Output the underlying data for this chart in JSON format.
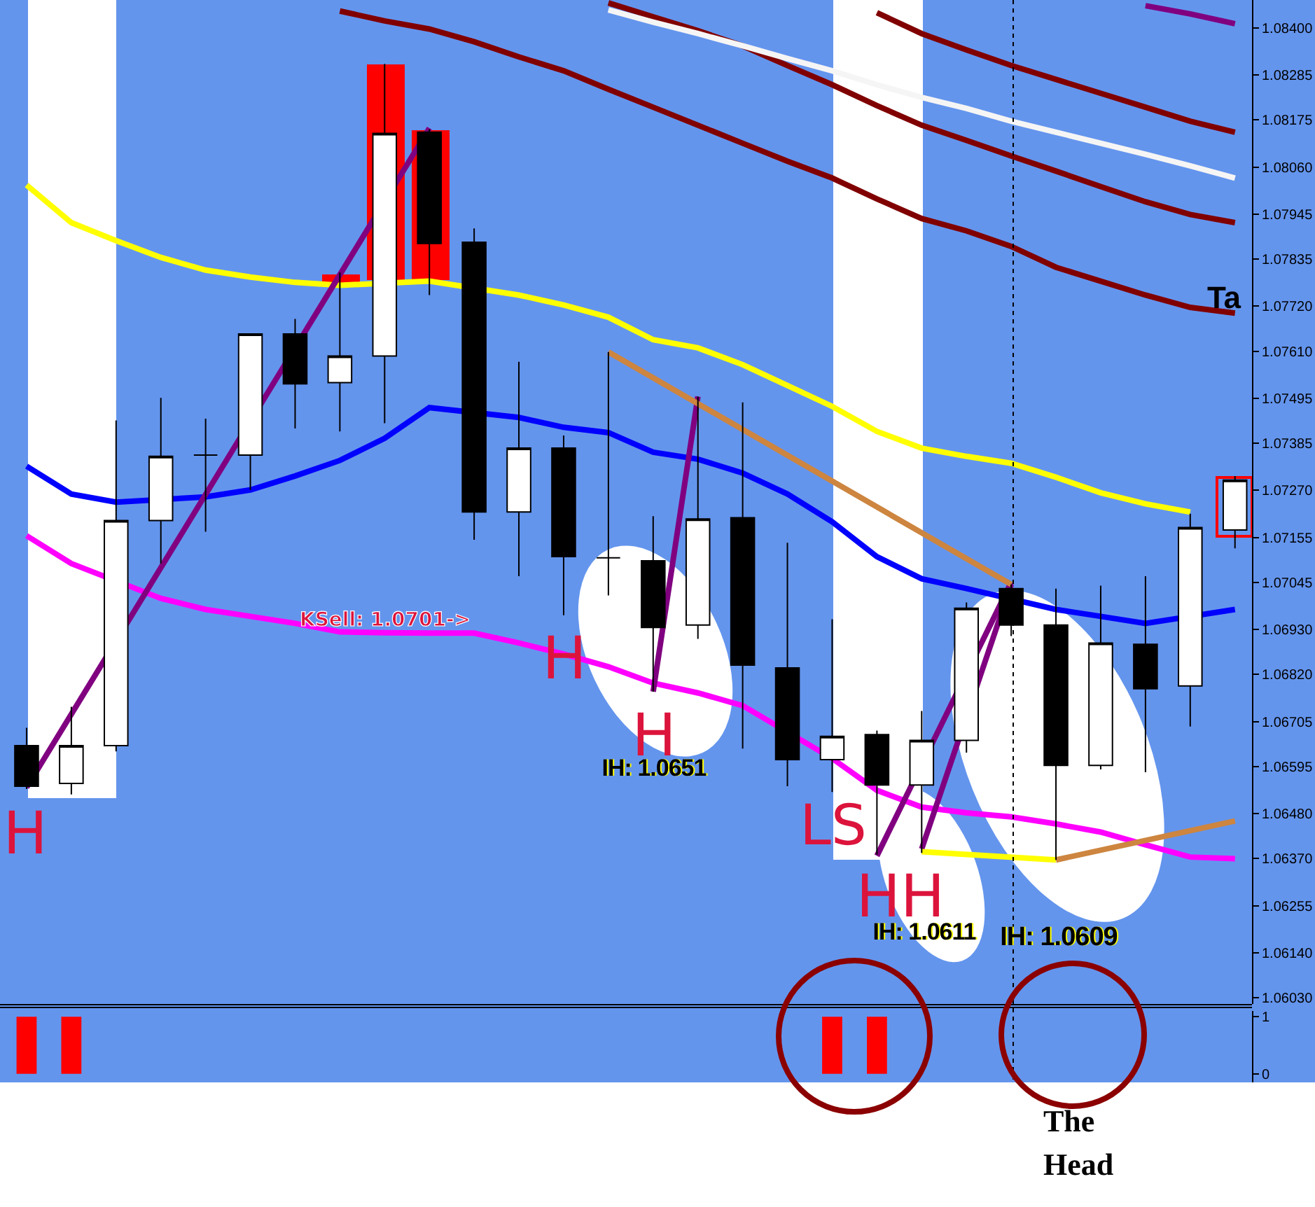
{
  "chart_data": [
    {
      "type": "candlestick",
      "tick_labels": "y",
      "categories": [
        null,
        null,
        null,
        null,
        null,
        null,
        null,
        null,
        null,
        null,
        null,
        null,
        null,
        null,
        null,
        null,
        null,
        null,
        null,
        null,
        null,
        null,
        null,
        null,
        null,
        null,
        null,
        null
      ],
      "ohlc": [
        [
          1.06646,
          1.0669,
          1.0654,
          1.06547
        ],
        [
          1.06554,
          1.06741,
          1.06527,
          1.06646
        ],
        [
          1.06646,
          1.07441,
          1.06632,
          1.07196
        ],
        [
          1.07196,
          1.07496,
          1.07091,
          1.07353
        ],
        [
          1.07356,
          1.07445,
          1.07169,
          1.07356
        ],
        [
          1.07356,
          1.07652,
          1.07271,
          1.07652
        ],
        [
          1.07652,
          1.07689,
          1.07421,
          1.0753
        ],
        [
          1.07533,
          1.07802,
          1.07414,
          1.07598
        ],
        [
          1.07598,
          1.08312,
          1.07434,
          1.08142
        ],
        [
          1.08145,
          1.08152,
          1.07747,
          1.07873
        ],
        [
          1.07876,
          1.0791,
          1.07149,
          1.07217
        ],
        [
          1.07217,
          1.07584,
          1.0706,
          1.07373
        ],
        [
          1.07373,
          1.07404,
          1.06965,
          1.07108
        ],
        [
          1.07105,
          1.07608,
          1.07013,
          1.07105
        ],
        [
          1.07098,
          1.07207,
          1.06778,
          1.06935
        ],
        [
          1.06941,
          1.07499,
          1.06907,
          1.072
        ],
        [
          1.07203,
          1.07485,
          1.06639,
          1.06843
        ],
        [
          1.06836,
          1.07142,
          1.06547,
          1.06612
        ],
        [
          1.06612,
          1.06955,
          1.06533,
          1.06669
        ],
        [
          1.06673,
          1.06683,
          1.0638,
          1.0655
        ],
        [
          1.0655,
          1.06731,
          1.06384,
          1.06659
        ],
        [
          1.06659,
          1.06996,
          1.06629,
          1.06982
        ],
        [
          1.0703,
          1.0704,
          1.06914,
          1.06941
        ],
        [
          1.06941,
          1.0703,
          1.06367,
          1.06598
        ],
        [
          1.06598,
          1.07037,
          1.06588,
          1.06897
        ],
        [
          1.06894,
          1.0706,
          1.06581,
          1.06785
        ],
        [
          1.06792,
          1.07213,
          1.06693,
          1.07179
        ],
        [
          1.07173,
          1.07305,
          1.07128,
          1.07295
        ]
      ],
      "series": [
        {
          "type": "line",
          "color": "#ffff00",
          "values": [
            1.08016,
            1.07924,
            1.0788,
            1.07839,
            1.07808,
            1.07791,
            1.07778,
            1.07771,
            null,
            1.07781,
            null,
            1.07747,
            1.07723,
            1.07693,
            1.07638,
            1.07618,
            1.07577,
            1.07526,
            1.07475,
            1.07414,
            1.07373,
            1.07353,
            1.07336,
            1.07302,
            1.07264,
            1.07237,
            1.07217,
            null
          ]
        },
        {
          "type": "line",
          "color": "#0000ff",
          "values": [
            1.07329,
            1.07261,
            1.07241,
            null,
            1.07254,
            1.07271,
            1.07305,
            1.07343,
            1.07397,
            1.07472,
            null,
            1.07448,
            1.07424,
            1.07411,
            1.07363,
            1.07346,
            1.07312,
            1.07261,
            1.07193,
            1.07108,
            1.07054,
            1.0703,
            null,
            1.06979,
            1.06962,
            1.06945,
            null,
            1.06979
          ]
        },
        {
          "type": "line",
          "color": "#ff00ff",
          "values": [
            1.07159,
            1.07091,
            null,
            1.07006,
            1.06979,
            1.06962,
            1.06945,
            1.06924,
            1.06922,
            1.06921,
            1.06921,
            1.06897,
            1.0687,
            1.06839,
            1.06799,
            1.06775,
            1.06744,
            null,
            1.06615,
            1.06537,
            1.06496,
            1.06482,
            1.06472,
            1.06455,
            1.06435,
            1.06404,
            1.06374,
            1.0637
          ]
        },
        {
          "type": "line",
          "color": "#800000",
          "values": [
            null,
            null,
            null,
            null,
            null,
            null,
            null,
            1.08441,
            1.08417,
            1.08397,
            1.08366,
            1.08329,
            1.08295,
            1.0825,
            1.08206,
            1.08162,
            1.08118,
            1.08074,
            1.08033,
            1.07982,
            1.07934,
            1.07904,
            1.07866,
            1.07815,
            1.07781,
            1.07747,
            1.07717,
            1.07703
          ]
        },
        {
          "type": "line",
          "color": "#800000",
          "values": [
            null,
            null,
            null,
            null,
            null,
            null,
            null,
            null,
            null,
            null,
            null,
            null,
            null,
            1.08461,
            1.08427,
            1.08393,
            1.08356,
            1.08308,
            1.08261,
            1.0821,
            1.08162,
            1.08125,
            1.08087,
            1.0805,
            1.08012,
            1.07975,
            1.07944,
            1.07924
          ]
        },
        {
          "type": "line",
          "color": "#800000",
          "values": [
            null,
            null,
            null,
            null,
            null,
            null,
            null,
            null,
            null,
            null,
            null,
            null,
            null,
            null,
            null,
            null,
            null,
            null,
            null,
            1.08437,
            1.08386,
            1.08346,
            1.08308,
            1.08274,
            1.0824,
            1.08206,
            1.08172,
            1.08145
          ]
        },
        {
          "type": "line",
          "color": "#f5f5f5",
          "values": [
            null,
            null,
            null,
            null,
            null,
            null,
            null,
            null,
            null,
            null,
            null,
            null,
            null,
            1.08444,
            1.08414,
            1.08386,
            1.08356,
            1.08325,
            1.08295,
            1.08261,
            1.0823,
            1.08203,
            1.08172,
            1.08145,
            1.08118,
            1.08091,
            1.08063,
            1.08033
          ]
        },
        {
          "type": "line",
          "color": "#800080",
          "values": [
            null,
            null,
            null,
            null,
            null,
            null,
            null,
            null,
            null,
            null,
            null,
            null,
            null,
            null,
            null,
            null,
            null,
            null,
            null,
            null,
            null,
            null,
            null,
            null,
            null,
            1.08454,
            1.08434,
            1.0841
          ]
        },
        {
          "type": "line",
          "color": "#800080",
          "values": [
            1.06544,
            null,
            null,
            null,
            null,
            null,
            null,
            null,
            null,
            1.08155,
            null,
            null,
            null,
            null,
            null,
            null,
            null,
            null,
            null,
            null,
            null,
            null,
            null,
            null,
            null,
            null,
            null,
            null
          ]
        },
        {
          "type": "line",
          "color": "#800080",
          "values": [
            null,
            null,
            null,
            null,
            null,
            null,
            null,
            null,
            null,
            null,
            null,
            null,
            null,
            null,
            1.06778,
            1.07499,
            null,
            null,
            null,
            null,
            null,
            null,
            null,
            null,
            null,
            null,
            null,
            null
          ]
        },
        {
          "type": "line",
          "color": "#800080",
          "values": [
            null,
            null,
            null,
            null,
            null,
            null,
            null,
            null,
            null,
            null,
            null,
            null,
            null,
            null,
            null,
            null,
            null,
            null,
            null,
            1.06377,
            null,
            null,
            1.07045,
            null,
            null,
            null,
            null,
            null
          ]
        },
        {
          "type": "line",
          "color": "#800080",
          "values": [
            null,
            null,
            null,
            null,
            null,
            null,
            null,
            null,
            null,
            null,
            null,
            null,
            null,
            null,
            null,
            null,
            null,
            null,
            null,
            null,
            1.06394,
            null,
            1.0704,
            null,
            null,
            null,
            null,
            null
          ]
        },
        {
          "type": "line",
          "color": "#cd853f",
          "values": [
            null,
            null,
            null,
            null,
            null,
            null,
            null,
            null,
            null,
            null,
            null,
            null,
            null,
            1.07608,
            null,
            null,
            null,
            null,
            null,
            null,
            null,
            null,
            1.0704,
            null,
            null,
            null,
            null,
            null
          ]
        },
        {
          "type": "line",
          "color": "#cd853f",
          "values": [
            null,
            null,
            null,
            null,
            null,
            null,
            null,
            null,
            null,
            null,
            null,
            null,
            null,
            null,
            null,
            null,
            null,
            null,
            null,
            null,
            null,
            null,
            null,
            1.06367,
            null,
            null,
            null,
            1.06462
          ]
        },
        {
          "type": "line",
          "color": "#ffff00",
          "values": [
            null,
            null,
            null,
            null,
            null,
            null,
            null,
            null,
            null,
            null,
            null,
            null,
            null,
            null,
            null,
            null,
            null,
            null,
            null,
            null,
            1.06387,
            null,
            null,
            1.06367,
            null,
            null,
            null,
            null
          ]
        }
      ],
      "ylim": [
        1.06015,
        1.08468
      ],
      "yticks": [
        {
          "value": 1.084,
          "label": "1.08400"
        },
        {
          "value": 1.08285,
          "label": "1.08285"
        },
        {
          "value": 1.08175,
          "label": "1.08175"
        },
        {
          "value": 1.0806,
          "label": "1.08060"
        },
        {
          "value": 1.07945,
          "label": "1.07945"
        },
        {
          "value": 1.07835,
          "label": "1.07835"
        },
        {
          "value": 1.0772,
          "label": "1.07720"
        },
        {
          "value": 1.0761,
          "label": "1.07610"
        },
        {
          "value": 1.07495,
          "label": "1.07495"
        },
        {
          "value": 1.07385,
          "label": "1.07385"
        },
        {
          "value": 1.0727,
          "label": "1.07270"
        },
        {
          "value": 1.07155,
          "label": "1.07155"
        },
        {
          "value": 1.07045,
          "label": "1.07045"
        },
        {
          "value": 1.0693,
          "label": "1.06930"
        },
        {
          "value": 1.0682,
          "label": "1.06820"
        },
        {
          "value": 1.06705,
          "label": "1.06705"
        },
        {
          "value": 1.06595,
          "label": "1.06595"
        },
        {
          "value": 1.0648,
          "label": "1.06480"
        },
        {
          "value": 1.0637,
          "label": "1.06370"
        },
        {
          "value": 1.06255,
          "label": "1.06255"
        },
        {
          "value": 1.0614,
          "label": "1.06140"
        },
        {
          "value": 1.0603,
          "label": "1.06030"
        }
      ],
      "annotations": [
        "KSell: 1.0701->",
        "H",
        "H",
        "H",
        "LS",
        "HH",
        "IH: 1.0651",
        "IH: 1.0611",
        "IH: 1.0609",
        "Ta",
        "The Head"
      ]
    },
    {
      "type": "bar",
      "tick_labels": "y",
      "categories": [
        null,
        null,
        null,
        null,
        null,
        null,
        null,
        null,
        null,
        null,
        null,
        null,
        null,
        null,
        null,
        null,
        null,
        null,
        null,
        null,
        null,
        null,
        null,
        null,
        null,
        null,
        null,
        null
      ],
      "values": [
        1,
        1,
        null,
        null,
        null,
        null,
        null,
        null,
        null,
        null,
        null,
        null,
        null,
        null,
        null,
        null,
        null,
        null,
        1,
        1,
        null,
        null,
        null,
        null,
        null,
        null,
        null,
        null
      ],
      "color": "#ff0000",
      "ylim": [
        -0.15,
        1.1
      ],
      "yticks": [
        0,
        1
      ]
    }
  ]
}
